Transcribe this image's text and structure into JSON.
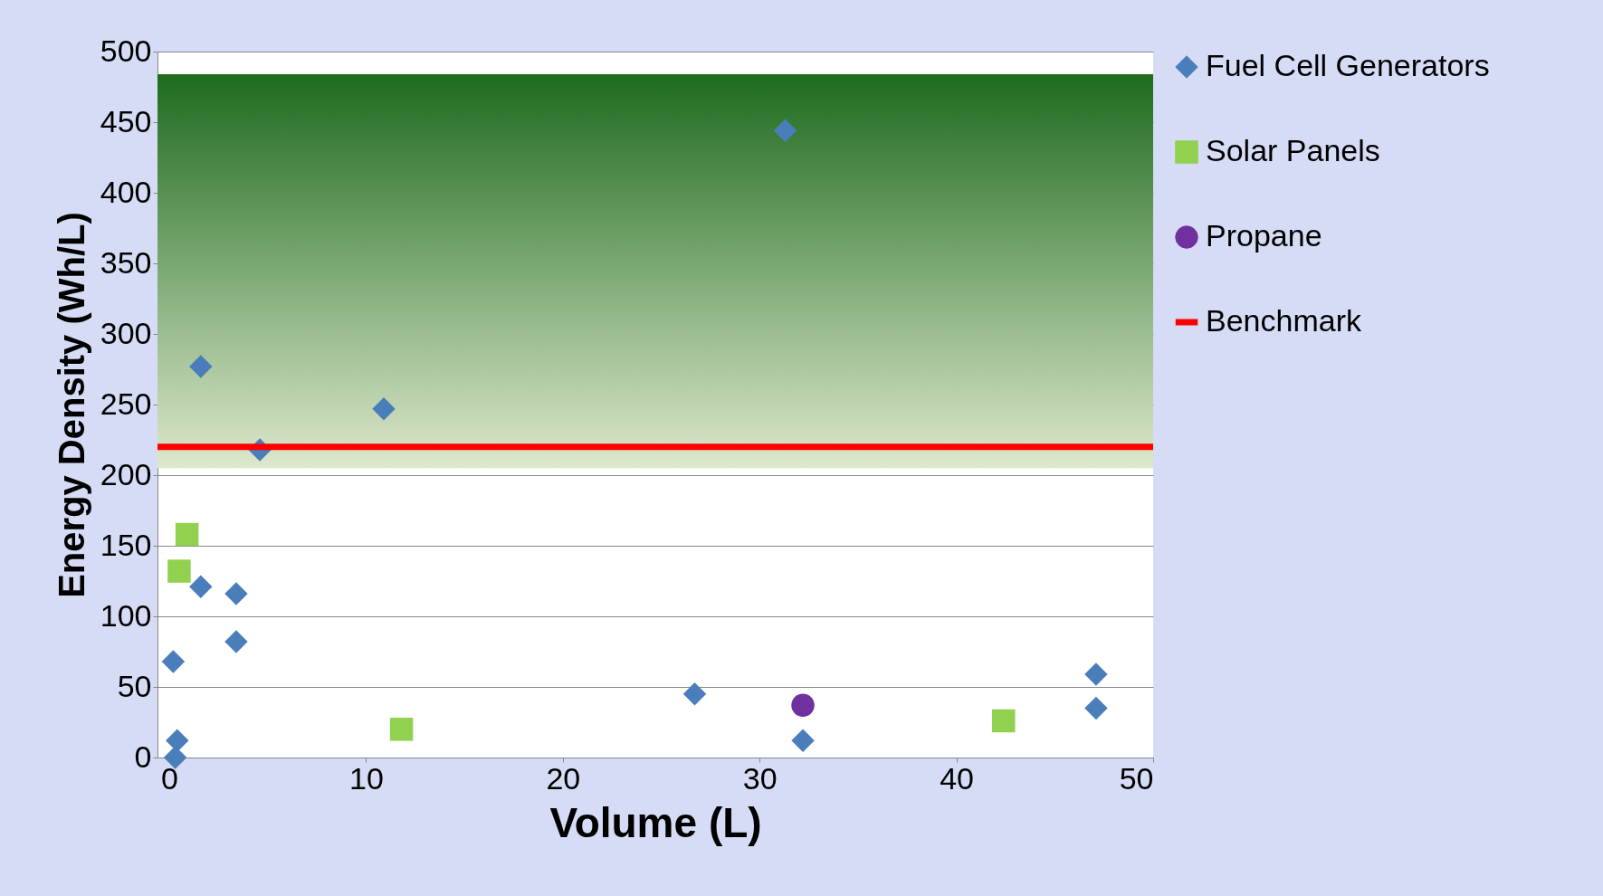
{
  "chart_data": {
    "type": "scatter",
    "xlabel": "Volume (L)",
    "ylabel": "Energy Density (Wh/L)",
    "xlim": [
      -0.6,
      50
    ],
    "xticks": [
      0,
      10,
      20,
      30,
      40,
      50
    ],
    "ylim": [
      0,
      500
    ],
    "yticks": [
      0,
      50,
      100,
      150,
      200,
      250,
      300,
      350,
      400,
      450,
      500
    ],
    "grid": "y",
    "legend": "right",
    "series": [
      {
        "name": "Fuel Cell Generators",
        "color": "#4a7ebb",
        "marker": "diamond",
        "x": [
          31.3,
          1.6,
          4.6,
          10.9,
          1.6,
          3.4,
          3.4,
          0.2,
          0.4,
          0.3,
          26.7,
          32.2,
          47.1,
          47.1
        ],
        "values": [
          444,
          277,
          218,
          247,
          121,
          116,
          82,
          68,
          12,
          0,
          45,
          12,
          59,
          35
        ]
      },
      {
        "name": "Solar Panels",
        "color": "#92d050",
        "marker": "square",
        "x": [
          0.9,
          0.5,
          11.8,
          42.4
        ],
        "values": [
          158,
          132,
          20,
          26
        ]
      },
      {
        "name": "Propane",
        "color": "#7030a0",
        "marker": "circle",
        "x": [
          32.2
        ],
        "values": [
          37
        ]
      }
    ],
    "ref_lines": [
      {
        "axis": "y",
        "value": 220,
        "label": "Benchmark",
        "color": "#ff0000"
      }
    ],
    "bands": [
      {
        "axis": "y",
        "from": 205,
        "to": 484,
        "color": "#1e6b1e"
      }
    ]
  }
}
